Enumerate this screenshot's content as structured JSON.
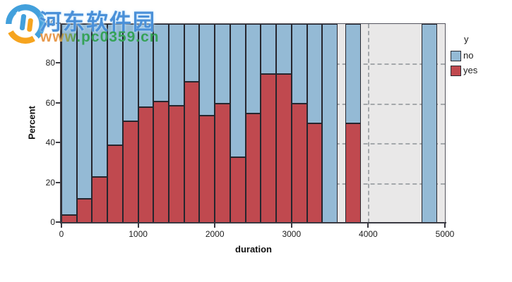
{
  "watermark": {
    "site_name": "河东软件园",
    "site_url": "www.pc0359.cn"
  },
  "colors": {
    "no_fill": "#94bad5",
    "yes_fill": "#c0494f",
    "bar_border": "#26262e",
    "plot_background": "#e9e8e8",
    "gridline": "#a4a8ab",
    "axis": "#3a3a42",
    "text": "#1c1c1c",
    "watermark_blue": "#4a90d8",
    "watermark_green": "#35a257",
    "watermark_orange": "#e89a4e",
    "logo_blue": "#42a0dc",
    "logo_orange": "#f6a41f"
  },
  "chart_data": {
    "type": "bar",
    "subtype": "stacked-percent-histogram",
    "title": "",
    "xlabel": "duration",
    "ylabel": "Percent",
    "xlim": [
      0,
      5000
    ],
    "ylim": [
      0,
      100
    ],
    "xticks": [
      0,
      1000,
      2000,
      3000,
      4000,
      5000
    ],
    "yticks": [
      0,
      20,
      40,
      60,
      80,
      100
    ],
    "grid": "dashed, visible on plot background behind bars; dashed reference line at x=4000",
    "legend": {
      "title": "y",
      "position": "right",
      "entries": [
        {
          "label": "no",
          "color": "#94bad5"
        },
        {
          "label": "yes",
          "color": "#c0494f"
        }
      ]
    },
    "bins": [
      {
        "x0": 0,
        "x1": 200,
        "yes_pct": 4,
        "no_pct": 96
      },
      {
        "x0": 200,
        "x1": 400,
        "yes_pct": 12,
        "no_pct": 88
      },
      {
        "x0": 400,
        "x1": 600,
        "yes_pct": 23,
        "no_pct": 77
      },
      {
        "x0": 600,
        "x1": 800,
        "yes_pct": 39,
        "no_pct": 61
      },
      {
        "x0": 800,
        "x1": 1000,
        "yes_pct": 51,
        "no_pct": 49
      },
      {
        "x0": 1000,
        "x1": 1200,
        "yes_pct": 58,
        "no_pct": 42
      },
      {
        "x0": 1200,
        "x1": 1400,
        "yes_pct": 61,
        "no_pct": 39
      },
      {
        "x0": 1400,
        "x1": 1600,
        "yes_pct": 59,
        "no_pct": 41
      },
      {
        "x0": 1600,
        "x1": 1800,
        "yes_pct": 71,
        "no_pct": 29
      },
      {
        "x0": 1800,
        "x1": 2000,
        "yes_pct": 54,
        "no_pct": 46
      },
      {
        "x0": 2000,
        "x1": 2200,
        "yes_pct": 60,
        "no_pct": 40
      },
      {
        "x0": 2200,
        "x1": 2400,
        "yes_pct": 33,
        "no_pct": 67
      },
      {
        "x0": 2400,
        "x1": 2600,
        "yes_pct": 55,
        "no_pct": 45
      },
      {
        "x0": 2600,
        "x1": 2800,
        "yes_pct": 75,
        "no_pct": 25
      },
      {
        "x0": 2800,
        "x1": 3000,
        "yes_pct": 75,
        "no_pct": 25
      },
      {
        "x0": 3000,
        "x1": 3200,
        "yes_pct": 60,
        "no_pct": 40
      },
      {
        "x0": 3200,
        "x1": 3400,
        "yes_pct": 50,
        "no_pct": 50
      },
      {
        "x0": 3400,
        "x1": 3600,
        "yes_pct": 0,
        "no_pct": 100
      },
      {
        "x0": 3700,
        "x1": 3900,
        "yes_pct": 50,
        "no_pct": 50
      },
      {
        "x0": 4700,
        "x1": 4900,
        "yes_pct": 0,
        "no_pct": 100
      }
    ],
    "reference_line_x": 4000
  }
}
